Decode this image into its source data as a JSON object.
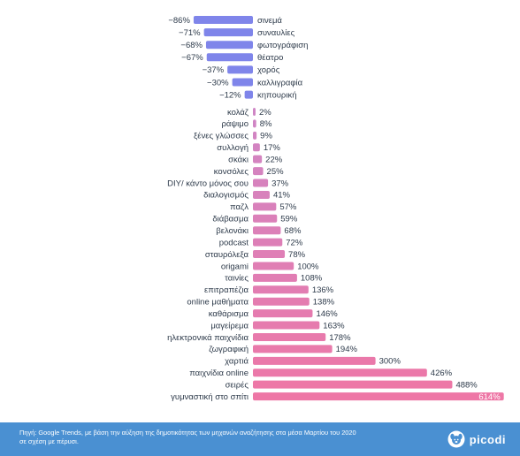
{
  "chart_data": {
    "type": "bar",
    "negative": {
      "categories": [
        "σινεμά",
        "συναυλίες",
        "φωτογράφιση",
        "θέατρο",
        "χορός",
        "καλλιγραφία",
        "κηπουρική"
      ],
      "values": [
        -86,
        -71,
        -68,
        -67,
        -37,
        -30,
        -12
      ],
      "labels": [
        "−86%",
        "−71%",
        "−68%",
        "−67%",
        "−37%",
        "−30%",
        "−12%"
      ]
    },
    "positive": {
      "categories": [
        "κολάζ",
        "ράψιμο",
        "ξένες γλώσσες",
        "συλλογή",
        "σκάκι",
        "κονσόλες",
        "DIY/ κάντο μόνος σου",
        "διαλογισμός",
        "παζλ",
        "διάβασμα",
        "βελονάκι",
        "podcast",
        "σταυρόλεξα",
        "origami",
        "ταινίες",
        "επιτραπέζια",
        "online μαθήματα",
        "καθάρισμα",
        "μαγείρεμα",
        "ηλεκτρονικά παιχνίδια",
        "ζωγραφική",
        "χαρτιά",
        "παιχνίδια online",
        "σειρές",
        "γυμναστική στο σπίτι"
      ],
      "values": [
        2,
        8,
        9,
        17,
        22,
        25,
        37,
        41,
        57,
        59,
        68,
        72,
        78,
        100,
        108,
        136,
        138,
        146,
        163,
        178,
        194,
        300,
        426,
        488,
        614
      ],
      "labels": [
        "2%",
        "8%",
        "9%",
        "17%",
        "22%",
        "25%",
        "37%",
        "41%",
        "57%",
        "59%",
        "68%",
        "72%",
        "78%",
        "100%",
        "108%",
        "136%",
        "138%",
        "146%",
        "163%",
        "178%",
        "194%",
        "300%",
        "426%",
        "488%",
        "614%"
      ]
    },
    "colors": {
      "negative": "#7f85ea",
      "positive_light": "#cf86c5",
      "positive_dark": "#ee77a6"
    }
  },
  "footer": {
    "source_line1": "Πηγή: Google Trends, με βάση την αύξηση της δημοτικότητας των μηχανών αναζήτησης στα μέσα Μαρτίου του 2020",
    "source_line2": "σε σχέση με πέρυσι.",
    "brand": "picodi"
  }
}
